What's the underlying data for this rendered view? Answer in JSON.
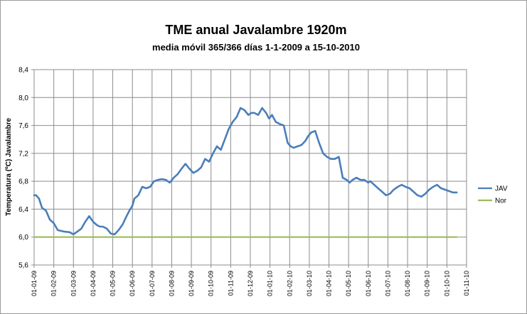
{
  "chart_data": {
    "type": "line",
    "title": "TME anual Javalambre 1920m",
    "subtitle": "media móvil 365/366 días 1-1-2009 a 15-10-2010",
    "xlabel": "",
    "ylabel": "Temperatura (ºC) Javalambre",
    "ylim": [
      5.6,
      8.4
    ],
    "y_ticks": [
      "5,6",
      "6,0",
      "6,4",
      "6,8",
      "7,2",
      "7,6",
      "8,0",
      "8,4"
    ],
    "y_tick_values": [
      5.6,
      6.0,
      6.4,
      6.8,
      7.2,
      7.6,
      8.0,
      8.4
    ],
    "x_ticks": [
      "01-01-09",
      "01-02-09",
      "01-03-09",
      "01-04-09",
      "01-05-09",
      "01-06-09",
      "01-07-09",
      "01-08-09",
      "01-09-09",
      "01-10-09",
      "01-11-09",
      "01-12-09",
      "01-01-10",
      "01-02-10",
      "01-03-10",
      "01-04-10",
      "01-05-10",
      "01-06-10",
      "01-07-10",
      "01-08-10",
      "01-09-10",
      "01-10-10",
      "01-11-10"
    ],
    "grid": "vertical and horizontal",
    "legend_position": "right",
    "series": [
      {
        "name": "JAV",
        "color": "#4a7ebb",
        "x": [
          0,
          0.1,
          0.25,
          0.4,
          0.6,
          0.8,
          1.0,
          1.2,
          1.5,
          1.8,
          2.0,
          2.2,
          2.4,
          2.6,
          2.8,
          3.0,
          3.2,
          3.35,
          3.5,
          3.7,
          3.9,
          4.1,
          4.3,
          4.5,
          4.7,
          4.85,
          5.0,
          5.1,
          5.3,
          5.5,
          5.7,
          5.9,
          6.1,
          6.3,
          6.5,
          6.7,
          6.9,
          7.1,
          7.3,
          7.5,
          7.7,
          7.9,
          8.1,
          8.3,
          8.5,
          8.7,
          8.9,
          9.1,
          9.3,
          9.5,
          9.7,
          9.9,
          10.1,
          10.3,
          10.5,
          10.7,
          10.9,
          11.05,
          11.2,
          11.4,
          11.6,
          11.8,
          11.95,
          12.1,
          12.3,
          12.5,
          12.7,
          12.9,
          13.05,
          13.2,
          13.4,
          13.6,
          13.8,
          13.95,
          14.1,
          14.3,
          14.5,
          14.7,
          14.9,
          15.1,
          15.3,
          15.5,
          15.7,
          15.9,
          16.05,
          16.2,
          16.4,
          16.6,
          16.8,
          17.0,
          17.1,
          17.3,
          17.5,
          17.7,
          17.9,
          18.1,
          18.3,
          18.5,
          18.7,
          18.9,
          19.1,
          19.3,
          19.5,
          19.7,
          19.9,
          20.1,
          20.3,
          20.5,
          20.7,
          20.9,
          21.1,
          21.3,
          21.5
        ],
        "values": [
          6.6,
          6.6,
          6.55,
          6.42,
          6.38,
          6.25,
          6.2,
          6.1,
          6.08,
          6.07,
          6.04,
          6.08,
          6.12,
          6.22,
          6.3,
          6.22,
          6.17,
          6.15,
          6.15,
          6.12,
          6.05,
          6.04,
          6.1,
          6.18,
          6.3,
          6.38,
          6.45,
          6.55,
          6.6,
          6.72,
          6.7,
          6.72,
          6.8,
          6.82,
          6.83,
          6.82,
          6.78,
          6.85,
          6.9,
          6.98,
          7.05,
          6.98,
          6.92,
          6.95,
          7.0,
          7.12,
          7.08,
          7.2,
          7.3,
          7.25,
          7.4,
          7.55,
          7.65,
          7.72,
          7.85,
          7.82,
          7.75,
          7.78,
          7.78,
          7.75,
          7.85,
          7.78,
          7.7,
          7.75,
          7.65,
          7.62,
          7.6,
          7.35,
          7.3,
          7.28,
          7.3,
          7.32,
          7.38,
          7.45,
          7.5,
          7.52,
          7.35,
          7.2,
          7.15,
          7.12,
          7.12,
          7.15,
          6.85,
          6.82,
          6.78,
          6.82,
          6.85,
          6.82,
          6.82,
          6.78,
          6.8,
          6.75,
          6.7,
          6.65,
          6.6,
          6.62,
          6.68,
          6.72,
          6.75,
          6.72,
          6.7,
          6.65,
          6.6,
          6.58,
          6.62,
          6.68,
          6.72,
          6.75,
          6.7,
          6.68,
          6.66,
          6.64,
          6.64
        ]
      },
      {
        "name": "Nor",
        "color": "#9bbb59",
        "x": [
          0,
          21.5
        ],
        "values": [
          6.0,
          6.0
        ]
      }
    ]
  }
}
